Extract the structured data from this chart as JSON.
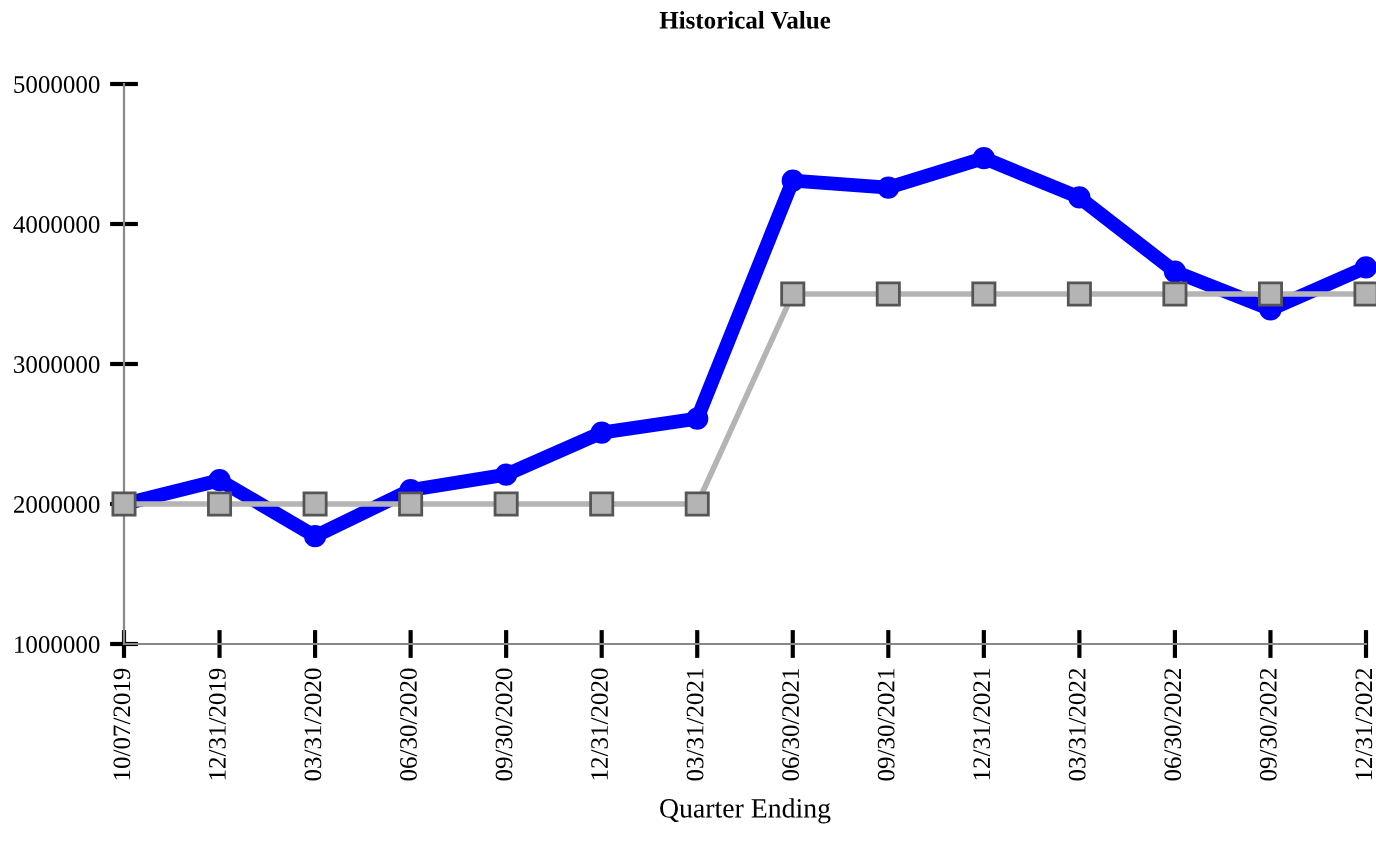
{
  "chart_data": {
    "type": "line",
    "title": "Historical Value",
    "xlabel": "Quarter Ending",
    "categories": [
      "10/07/2019",
      "12/31/2019",
      "03/31/2020",
      "06/30/2020",
      "09/30/2020",
      "12/31/2020",
      "03/31/2021",
      "06/30/2021",
      "09/30/2021",
      "12/31/2021",
      "03/31/2022",
      "06/30/2022",
      "09/30/2022",
      "12/31/2022"
    ],
    "series": [
      {
        "color": "#b4b4b4",
        "marker": "square",
        "values": [
          2000000,
          2000000,
          2000000,
          2000000,
          2000000,
          2000000,
          2000000,
          3500000,
          3500000,
          3500000,
          3500000,
          3500000,
          3500000,
          3500000
        ]
      },
      {
        "color": "#0000ff",
        "marker": "circle",
        "values": [
          2000000,
          2170000,
          1770000,
          2100000,
          2210000,
          2510000,
          2610000,
          4310000,
          4260000,
          4470000,
          4190000,
          3660000,
          3390000,
          3690000
        ]
      }
    ],
    "ylim": [
      1000000,
      5000000
    ],
    "yticks": [
      1000000,
      2000000,
      3000000,
      4000000,
      5000000
    ],
    "grid": false,
    "legend": false
  }
}
